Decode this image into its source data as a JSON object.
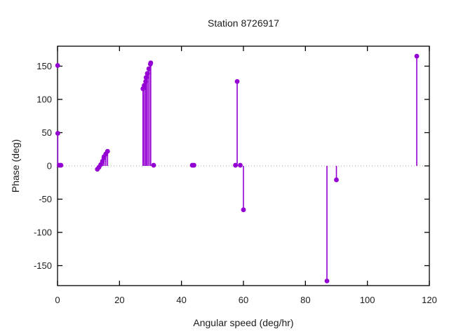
{
  "chart_data": {
    "type": "scatter",
    "style": "stem (impulses + points, gnuplot-like)",
    "title": "Station 8726917",
    "xlabel": "Angular speed (deg/hr)",
    "ylabel": "Phase (deg)",
    "xlim": [
      0,
      120
    ],
    "ylim": [
      -180,
      180
    ],
    "xticks": [
      0,
      20,
      40,
      60,
      80,
      100,
      120
    ],
    "yticks": [
      -150,
      -100,
      -50,
      0,
      50,
      100,
      150
    ],
    "grid": false,
    "zero_line_dotted": true,
    "legend": "none",
    "marker_color": "#9400d3",
    "zero_line_color": "#a8a8a8",
    "border_color": "#000000",
    "points": [
      {
        "x": 0.04,
        "y": 151,
        "stem": false
      },
      {
        "x": 0.08,
        "y": 49
      },
      {
        "x": 0.54,
        "y": 1
      },
      {
        "x": 1.1,
        "y": 1
      },
      {
        "x": 12.85,
        "y": -5
      },
      {
        "x": 13.4,
        "y": -2
      },
      {
        "x": 13.94,
        "y": 2
      },
      {
        "x": 14.49,
        "y": 7
      },
      {
        "x": 14.96,
        "y": 12
      },
      {
        "x": 15.04,
        "y": 14
      },
      {
        "x": 15.58,
        "y": 18
      },
      {
        "x": 16.14,
        "y": 22
      },
      {
        "x": 27.57,
        "y": 116
      },
      {
        "x": 27.97,
        "y": 121
      },
      {
        "x": 28.44,
        "y": 127
      },
      {
        "x": 28.57,
        "y": 133
      },
      {
        "x": 28.98,
        "y": 139
      },
      {
        "x": 29.46,
        "y": 146
      },
      {
        "x": 29.96,
        "y": 153
      },
      {
        "x": 30.08,
        "y": 155
      },
      {
        "x": 31.02,
        "y": 1
      },
      {
        "x": 43.48,
        "y": 1
      },
      {
        "x": 44.03,
        "y": 1
      },
      {
        "x": 57.42,
        "y": 1
      },
      {
        "x": 57.97,
        "y": 127
      },
      {
        "x": 58.98,
        "y": 1
      },
      {
        "x": 60.0,
        "y": -66
      },
      {
        "x": 86.95,
        "y": -173
      },
      {
        "x": 90.0,
        "y": -21
      },
      {
        "x": 115.94,
        "y": 165
      }
    ]
  }
}
